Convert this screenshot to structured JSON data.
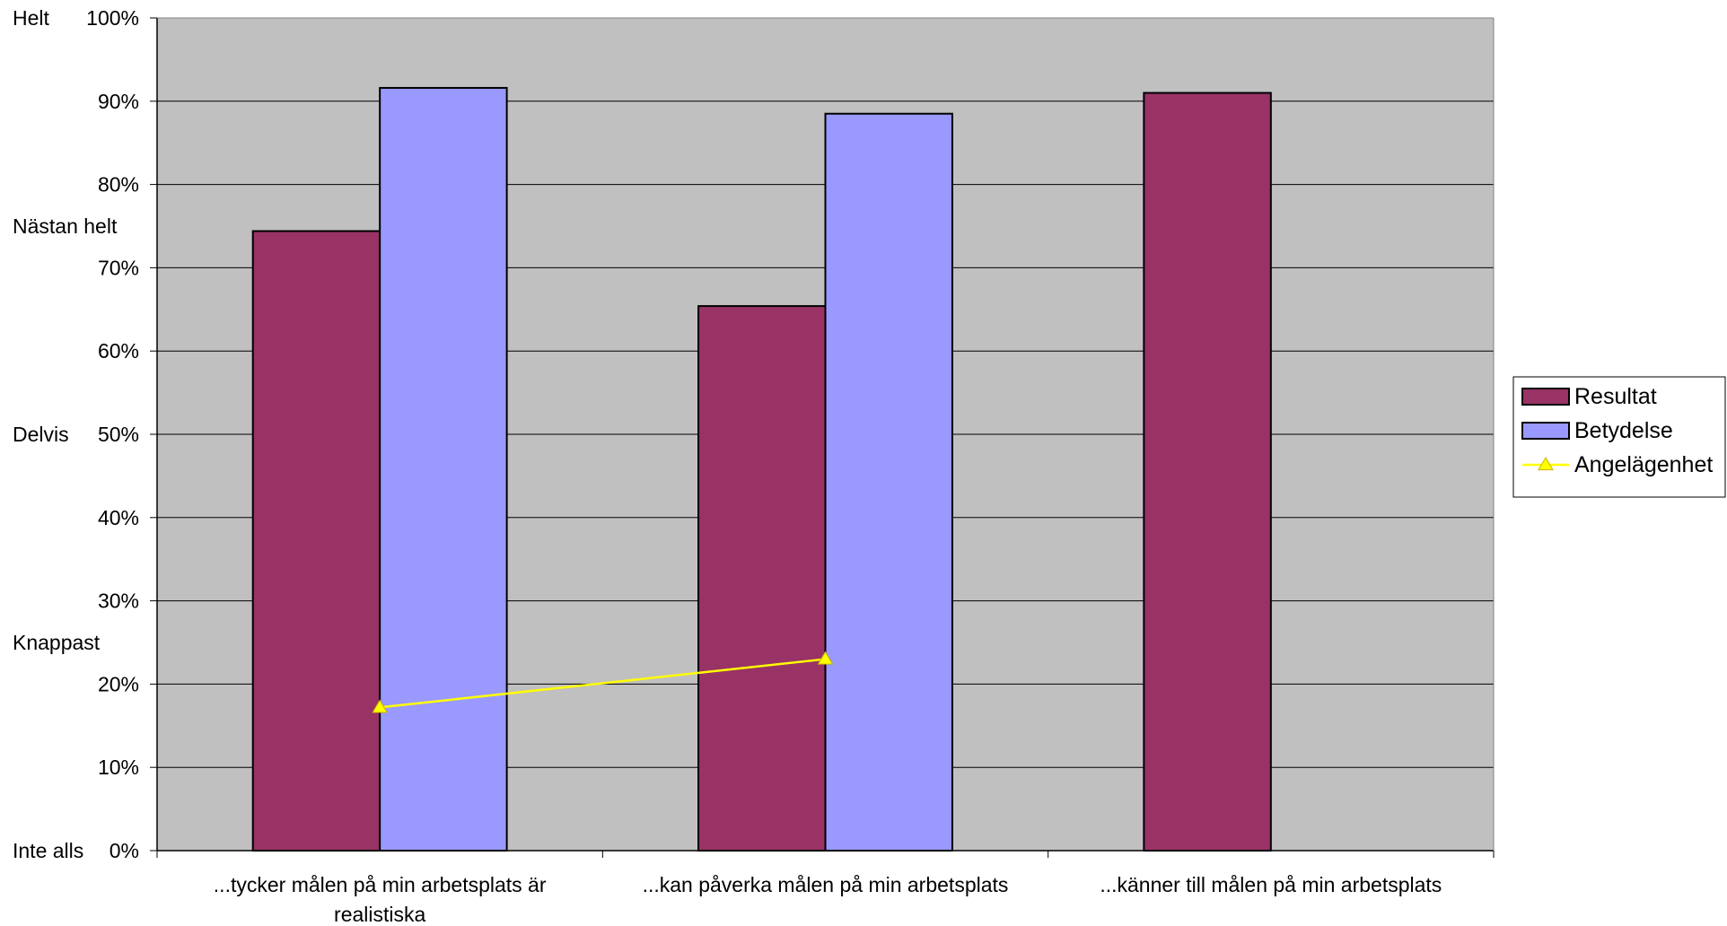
{
  "chart_data": {
    "type": "bar",
    "title": "",
    "xlabel": "",
    "ylabel": "",
    "ylim": [
      0,
      100
    ],
    "yticks": [
      0,
      10,
      20,
      30,
      40,
      50,
      60,
      70,
      80,
      90,
      100
    ],
    "ytick_suffix": "%",
    "scale_labels": [
      {
        "label": "Helt",
        "value": 100
      },
      {
        "label": "Nästan helt",
        "value": 75
      },
      {
        "label": "Delvis",
        "value": 50
      },
      {
        "label": "Knappast",
        "value": 25
      },
      {
        "label": "Inte alls",
        "value": 0
      }
    ],
    "categories": [
      [
        "...tycker målen på min arbetsplats är",
        "realistiska"
      ],
      [
        "...kan påverka målen på min arbetsplats"
      ],
      [
        "...känner till målen på min arbetsplats"
      ]
    ],
    "series": [
      {
        "name": "Resultat",
        "kind": "bar",
        "color": "#993366",
        "values": [
          74.4,
          65.4,
          91.0
        ]
      },
      {
        "name": "Betydelse",
        "kind": "bar",
        "color": "#9999ff",
        "values": [
          91.6,
          88.5,
          null
        ]
      },
      {
        "name": "Angelägenhet",
        "kind": "line",
        "color": "#ffff00",
        "marker": "triangle",
        "values": [
          17.2,
          23.0,
          null
        ]
      }
    ],
    "grid": true,
    "plot_background": "#c0c0c0",
    "legend_position": "right"
  }
}
